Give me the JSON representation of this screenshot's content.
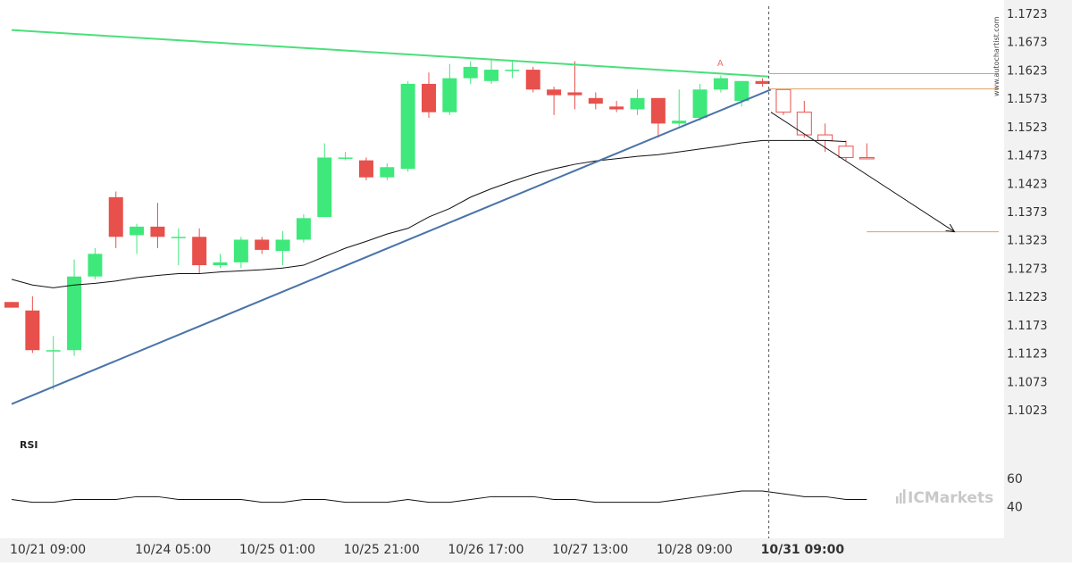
{
  "chart_data": {
    "type": "candlestick",
    "price_axis": {
      "ticks": [
        "1.1723",
        "1.1673",
        "1.1623",
        "1.1573",
        "1.1523",
        "1.1473",
        "1.1423",
        "1.1373",
        "1.1323",
        "1.1273",
        "1.1223",
        "1.1173",
        "1.1123",
        "1.1073",
        "1.1023"
      ],
      "ylim": [
        1.0998,
        1.1737
      ]
    },
    "x_axis": {
      "ticks": [
        {
          "index": 0,
          "label": "10/21 09:00",
          "bold": false
        },
        {
          "index": 6,
          "label": "10/24 05:00",
          "bold": false
        },
        {
          "index": 11,
          "label": "10/25 01:00",
          "bold": false
        },
        {
          "index": 16,
          "label": "10/25 21:00",
          "bold": false
        },
        {
          "index": 21,
          "label": "10/26 17:00",
          "bold": false
        },
        {
          "index": 26,
          "label": "10/27 13:00",
          "bold": false
        },
        {
          "index": 31,
          "label": "10/28 09:00",
          "bold": false
        },
        {
          "index": 36,
          "label": "10/31 09:00",
          "bold": true
        }
      ]
    },
    "candles": [
      {
        "o": 1.1215,
        "h": 1.1215,
        "l": 1.1205,
        "c": 1.1205
      },
      {
        "o": 1.12,
        "h": 1.1225,
        "l": 1.1125,
        "c": 1.113
      },
      {
        "o": 1.113,
        "h": 1.1155,
        "l": 1.106,
        "c": 1.113
      },
      {
        "o": 1.113,
        "h": 1.129,
        "l": 1.112,
        "c": 1.126
      },
      {
        "o": 1.126,
        "h": 1.131,
        "l": 1.1255,
        "c": 1.13
      },
      {
        "o": 1.14,
        "h": 1.141,
        "l": 1.131,
        "c": 1.133
      },
      {
        "o": 1.1333,
        "h": 1.1353,
        "l": 1.13,
        "c": 1.1348
      },
      {
        "o": 1.1348,
        "h": 1.139,
        "l": 1.131,
        "c": 1.133
      },
      {
        "o": 1.133,
        "h": 1.1345,
        "l": 1.128,
        "c": 1.133
      },
      {
        "o": 1.133,
        "h": 1.1345,
        "l": 1.1265,
        "c": 1.128
      },
      {
        "o": 1.128,
        "h": 1.13,
        "l": 1.1275,
        "c": 1.1285
      },
      {
        "o": 1.1285,
        "h": 1.133,
        "l": 1.1275,
        "c": 1.1325
      },
      {
        "o": 1.1325,
        "h": 1.133,
        "l": 1.13,
        "c": 1.1307
      },
      {
        "o": 1.1305,
        "h": 1.134,
        "l": 1.128,
        "c": 1.1325
      },
      {
        "o": 1.1325,
        "h": 1.137,
        "l": 1.132,
        "c": 1.1363
      },
      {
        "o": 1.1365,
        "h": 1.1495,
        "l": 1.1365,
        "c": 1.147
      },
      {
        "o": 1.147,
        "h": 1.148,
        "l": 1.1465,
        "c": 1.147
      },
      {
        "o": 1.1465,
        "h": 1.147,
        "l": 1.143,
        "c": 1.1435
      },
      {
        "o": 1.1435,
        "h": 1.146,
        "l": 1.143,
        "c": 1.1453
      },
      {
        "o": 1.145,
        "h": 1.1605,
        "l": 1.1445,
        "c": 1.16
      },
      {
        "o": 1.16,
        "h": 1.162,
        "l": 1.154,
        "c": 1.155
      },
      {
        "o": 1.155,
        "h": 1.1635,
        "l": 1.1545,
        "c": 1.161
      },
      {
        "o": 1.161,
        "h": 1.164,
        "l": 1.16,
        "c": 1.163
      },
      {
        "o": 1.1605,
        "h": 1.1645,
        "l": 1.16,
        "c": 1.1625
      },
      {
        "o": 1.1625,
        "h": 1.164,
        "l": 1.161,
        "c": 1.1625
      },
      {
        "o": 1.1625,
        "h": 1.163,
        "l": 1.1585,
        "c": 1.159
      },
      {
        "o": 1.159,
        "h": 1.1595,
        "l": 1.1545,
        "c": 1.158
      },
      {
        "o": 1.1585,
        "h": 1.164,
        "l": 1.1555,
        "c": 1.158
      },
      {
        "o": 1.1575,
        "h": 1.1585,
        "l": 1.1555,
        "c": 1.1565
      },
      {
        "o": 1.156,
        "h": 1.157,
        "l": 1.155,
        "c": 1.1555
      },
      {
        "o": 1.1555,
        "h": 1.159,
        "l": 1.1545,
        "c": 1.1575
      },
      {
        "o": 1.1575,
        "h": 1.1575,
        "l": 1.1505,
        "c": 1.153
      },
      {
        "o": 1.153,
        "h": 1.159,
        "l": 1.1525,
        "c": 1.1535
      },
      {
        "o": 1.154,
        "h": 1.16,
        "l": 1.1535,
        "c": 1.159
      },
      {
        "o": 1.159,
        "h": 1.1615,
        "l": 1.1585,
        "c": 1.161
      },
      {
        "o": 1.157,
        "h": 1.1605,
        "l": 1.156,
        "c": 1.1605
      },
      {
        "o": 1.1605,
        "h": 1.161,
        "l": 1.1595,
        "c": 1.16
      }
    ],
    "moving_average": [
      1.1255,
      1.1245,
      1.124,
      1.1245,
      1.1248,
      1.1252,
      1.1258,
      1.1262,
      1.1265,
      1.1265,
      1.1268,
      1.127,
      1.1272,
      1.1275,
      1.128,
      1.1295,
      1.131,
      1.1322,
      1.1335,
      1.1345,
      1.1365,
      1.138,
      1.14,
      1.1415,
      1.1428,
      1.144,
      1.145,
      1.1458,
      1.1464,
      1.1468,
      1.1472,
      1.1475,
      1.148,
      1.1485,
      1.149,
      1.1496,
      1.15,
      1.15,
      1.15,
      1.15,
      1.1498
    ],
    "projection_candles": [
      {
        "o": 1.159,
        "h": 1.159,
        "l": 1.1545,
        "c": 1.155
      },
      {
        "o": 1.155,
        "h": 1.157,
        "l": 1.1505,
        "c": 1.151
      },
      {
        "o": 1.151,
        "h": 1.153,
        "l": 1.148,
        "c": 1.15
      },
      {
        "o": 1.149,
        "h": 1.15,
        "l": 1.1465,
        "c": 1.147
      },
      {
        "o": 1.147,
        "h": 1.1495,
        "l": 1.147,
        "c": 1.147
      }
    ],
    "pattern_lines": {
      "resistance": {
        "from": [
          0,
          1.1695
        ],
        "to": [
          36.3,
          1.1613
        ],
        "color": "#4ae07a"
      },
      "support": {
        "from": [
          0,
          1.1035
        ],
        "to": [
          36.4,
          1.159
        ],
        "color": "#4a74a8"
      }
    },
    "levels": [
      {
        "price": 1.1618,
        "from_index": 36.3,
        "color": "#e0a060"
      },
      {
        "price": 1.1591,
        "from_index": 36.3,
        "color": "#e0a060"
      },
      {
        "price": 1.1339,
        "from_index": 41.0,
        "color": "#e0a060"
      }
    ],
    "forecast_arrow": {
      "from": [
        36.4,
        1.155
      ],
      "to": [
        45.2,
        1.1339
      ]
    },
    "breakout_marker": {
      "index": 34,
      "price": 1.1628,
      "label": "A"
    },
    "rsi": {
      "label": "RSI",
      "ticks": [
        60,
        40
      ],
      "range": [
        32,
        70
      ],
      "values": [
        45,
        43,
        43,
        45,
        45,
        45,
        47,
        47,
        45,
        45,
        45,
        45,
        43,
        43,
        45,
        45,
        43,
        43,
        43,
        45,
        43,
        43,
        45,
        47,
        47,
        47,
        45,
        45,
        43,
        43,
        43,
        43,
        45,
        47,
        49,
        51,
        51,
        49,
        47,
        47,
        45,
        45
      ]
    },
    "candle_colors": {
      "up": "#3ee87a",
      "down": "#e8504b"
    },
    "watermark": "ICMarkets",
    "vertical_text": "www.autochartist.com"
  }
}
